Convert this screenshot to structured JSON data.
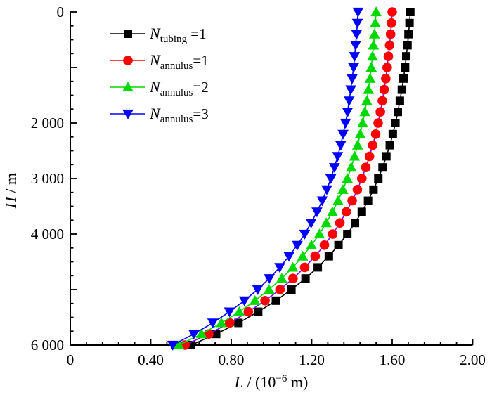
{
  "figure": {
    "background": "#ffffff"
  },
  "chart_data": {
    "type": "line",
    "title": "",
    "xlabel": {
      "plain": "L / (10⁻⁶ m)",
      "var": "L",
      "mid": " / (10",
      "sup": "−6",
      "end": " m)"
    },
    "ylabel": {
      "plain": "H / m",
      "var": "H",
      "end": " / m"
    },
    "x_axis": {
      "range": [
        0,
        2.0
      ],
      "major_step": 0.4,
      "minor_divisions": 5,
      "tick_labels": [
        "0",
        "0.40",
        "0.80",
        "1.20",
        "1.60",
        "2.00"
      ]
    },
    "y_axis": {
      "range": [
        0,
        6000
      ],
      "major_step": 1000,
      "minor_divisions": 4,
      "inverted": true,
      "tick_labels": [
        {
          "value": 0,
          "label": "0"
        },
        {
          "value": 2000,
          "label": "2 000"
        },
        {
          "value": 3000,
          "label": "3 000"
        },
        {
          "value": 4000,
          "label": "4 000"
        },
        {
          "value": 6000,
          "label": "6 000"
        }
      ]
    },
    "legend": {
      "position": "top-left-inside"
    },
    "series": [
      {
        "id": "tubing-1",
        "legend_label": {
          "var": "N",
          "sub": "tubing",
          "eq": " =1",
          "plain": "N tubing =1"
        },
        "marker": "square",
        "marker_color": "#000000",
        "line_color": "#000000",
        "legend_line_color": "#000000",
        "points": [
          [
            0,
            1.69
          ],
          [
            200,
            1.686
          ],
          [
            400,
            1.681
          ],
          [
            600,
            1.676
          ],
          [
            800,
            1.67
          ],
          [
            1000,
            1.664
          ],
          [
            1200,
            1.656
          ],
          [
            1400,
            1.648
          ],
          [
            1600,
            1.638
          ],
          [
            1800,
            1.628
          ],
          [
            2000,
            1.616
          ],
          [
            2200,
            1.603
          ],
          [
            2400,
            1.588
          ],
          [
            2600,
            1.571
          ],
          [
            2800,
            1.552
          ],
          [
            3000,
            1.531
          ],
          [
            3200,
            1.507
          ],
          [
            3400,
            1.48
          ],
          [
            3600,
            1.449
          ],
          [
            3800,
            1.415
          ],
          [
            4000,
            1.377
          ],
          [
            4200,
            1.333
          ],
          [
            4400,
            1.285
          ],
          [
            4600,
            1.23
          ],
          [
            4800,
            1.169
          ],
          [
            5000,
            1.099
          ],
          [
            5200,
            1.022
          ],
          [
            5400,
            0.934
          ],
          [
            5600,
            0.836
          ],
          [
            5800,
            0.725
          ],
          [
            6000,
            0.601
          ]
        ]
      },
      {
        "id": "annulus-1",
        "legend_label": {
          "var": "N",
          "sub": "annulus",
          "eq": "=1",
          "plain": "N annulus =1"
        },
        "marker": "circle",
        "marker_color": "#ff0000",
        "line_color": "#8800ff",
        "legend_line_color": "#ff0000",
        "points": [
          [
            0,
            1.6
          ],
          [
            200,
            1.596
          ],
          [
            400,
            1.592
          ],
          [
            600,
            1.587
          ],
          [
            800,
            1.581
          ],
          [
            1000,
            1.575
          ],
          [
            1200,
            1.568
          ],
          [
            1400,
            1.56
          ],
          [
            1600,
            1.551
          ],
          [
            1800,
            1.541
          ],
          [
            2000,
            1.53
          ],
          [
            2200,
            1.518
          ],
          [
            2400,
            1.503
          ],
          [
            2600,
            1.487
          ],
          [
            2800,
            1.469
          ],
          [
            3000,
            1.449
          ],
          [
            3200,
            1.427
          ],
          [
            3400,
            1.401
          ],
          [
            3600,
            1.372
          ],
          [
            3800,
            1.34
          ],
          [
            4000,
            1.304
          ],
          [
            4200,
            1.263
          ],
          [
            4400,
            1.217
          ],
          [
            4600,
            1.165
          ],
          [
            4800,
            1.107
          ],
          [
            5000,
            1.042
          ],
          [
            5200,
            0.968
          ],
          [
            5400,
            0.885
          ],
          [
            5600,
            0.792
          ],
          [
            5800,
            0.688
          ],
          [
            6000,
            0.57
          ]
        ]
      },
      {
        "id": "annulus-2",
        "legend_label": {
          "var": "N",
          "sub": "annulus",
          "eq": "=2",
          "plain": "N annulus =2"
        },
        "marker": "triangle-up",
        "marker_color": "#00d900",
        "line_color": "#00d900",
        "legend_line_color": "#00d900",
        "points": [
          [
            0,
            1.52
          ],
          [
            200,
            1.516
          ],
          [
            400,
            1.512
          ],
          [
            600,
            1.507
          ],
          [
            800,
            1.502
          ],
          [
            1000,
            1.496
          ],
          [
            1200,
            1.49
          ],
          [
            1400,
            1.482
          ],
          [
            1600,
            1.474
          ],
          [
            1800,
            1.464
          ],
          [
            2000,
            1.453
          ],
          [
            2200,
            1.441
          ],
          [
            2400,
            1.428
          ],
          [
            2600,
            1.413
          ],
          [
            2800,
            1.396
          ],
          [
            3000,
            1.377
          ],
          [
            3200,
            1.355
          ],
          [
            3400,
            1.331
          ],
          [
            3600,
            1.303
          ],
          [
            3800,
            1.272
          ],
          [
            4000,
            1.238
          ],
          [
            4200,
            1.199
          ],
          [
            4400,
            1.155
          ],
          [
            4600,
            1.106
          ],
          [
            4800,
            1.051
          ],
          [
            5000,
            0.988
          ],
          [
            5200,
            0.918
          ],
          [
            5400,
            0.84
          ],
          [
            5600,
            0.751
          ],
          [
            5800,
            0.652
          ],
          [
            6000,
            0.54
          ]
        ]
      },
      {
        "id": "annulus-3",
        "legend_label": {
          "var": "N",
          "sub": "annulus",
          "eq": "=3",
          "plain": "N annulus =3"
        },
        "marker": "triangle-down",
        "marker_color": "#0000ff",
        "line_color": "#0000ff",
        "legend_line_color": "#0000ff",
        "points": [
          [
            0,
            1.43
          ],
          [
            200,
            1.427
          ],
          [
            400,
            1.423
          ],
          [
            600,
            1.418
          ],
          [
            800,
            1.413
          ],
          [
            1000,
            1.408
          ],
          [
            1200,
            1.401
          ],
          [
            1400,
            1.394
          ],
          [
            1600,
            1.386
          ],
          [
            1800,
            1.378
          ],
          [
            2000,
            1.368
          ],
          [
            2200,
            1.356
          ],
          [
            2400,
            1.344
          ],
          [
            2600,
            1.329
          ],
          [
            2800,
            1.313
          ],
          [
            3000,
            1.295
          ],
          [
            3200,
            1.275
          ],
          [
            3400,
            1.252
          ],
          [
            3600,
            1.226
          ],
          [
            3800,
            1.197
          ],
          [
            4000,
            1.165
          ],
          [
            4200,
            1.128
          ],
          [
            4400,
            1.087
          ],
          [
            4600,
            1.041
          ],
          [
            4800,
            0.989
          ],
          [
            5000,
            0.931
          ],
          [
            5200,
            0.865
          ],
          [
            5400,
            0.791
          ],
          [
            5600,
            0.708
          ],
          [
            5800,
            0.614
          ],
          [
            6000,
            0.509
          ]
        ]
      }
    ]
  }
}
